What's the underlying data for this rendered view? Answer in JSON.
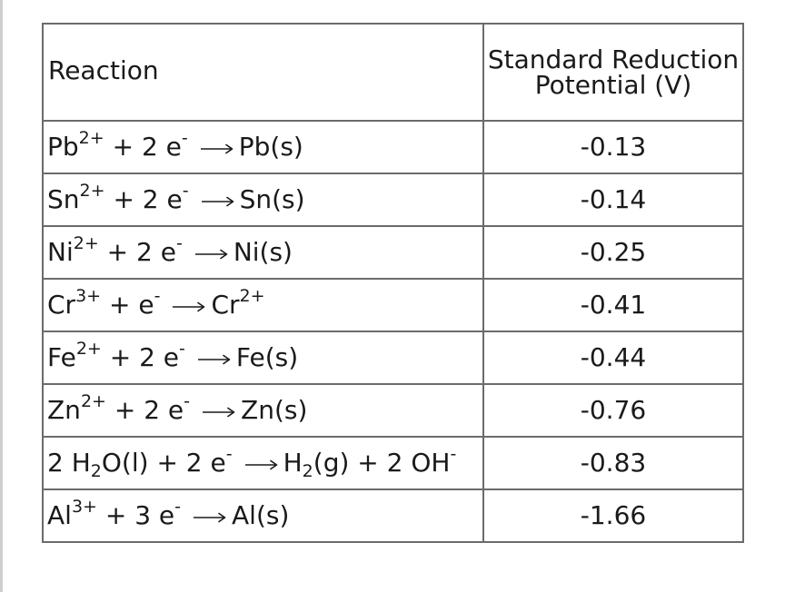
{
  "table": {
    "header": {
      "reaction": "Reaction",
      "potential_line1": "Standard Reduction",
      "potential_line2": "Potential (V)"
    },
    "arrow_icon": "right-long-arrow-icon",
    "rows": [
      {
        "lhs": [
          [
            "t",
            "Pb"
          ],
          [
            "sup",
            "2+"
          ],
          [
            "t",
            " + 2 e"
          ],
          [
            "sup",
            "-"
          ]
        ],
        "rhs": [
          [
            "t",
            "Pb(s)"
          ]
        ],
        "potential": "-0.13"
      },
      {
        "lhs": [
          [
            "t",
            "Sn"
          ],
          [
            "sup",
            "2+"
          ],
          [
            "t",
            " + 2 e"
          ],
          [
            "sup",
            "-"
          ]
        ],
        "rhs": [
          [
            "t",
            "Sn(s)"
          ]
        ],
        "potential": "-0.14"
      },
      {
        "lhs": [
          [
            "t",
            "Ni"
          ],
          [
            "sup",
            "2+"
          ],
          [
            "t",
            " + 2 e"
          ],
          [
            "sup",
            "-"
          ]
        ],
        "rhs": [
          [
            "t",
            "Ni(s)"
          ]
        ],
        "potential": "-0.25"
      },
      {
        "lhs": [
          [
            "t",
            "Cr"
          ],
          [
            "sup",
            "3+"
          ],
          [
            "t",
            " + e"
          ],
          [
            "sup",
            "-"
          ]
        ],
        "rhs": [
          [
            "t",
            "Cr"
          ],
          [
            "sup",
            "2+"
          ]
        ],
        "potential": "-0.41"
      },
      {
        "lhs": [
          [
            "t",
            "Fe"
          ],
          [
            "sup",
            "2+"
          ],
          [
            "t",
            " + 2 e"
          ],
          [
            "sup",
            "-"
          ]
        ],
        "rhs": [
          [
            "t",
            "Fe(s)"
          ]
        ],
        "potential": "-0.44"
      },
      {
        "lhs": [
          [
            "t",
            "Zn"
          ],
          [
            "sup",
            "2+"
          ],
          [
            "t",
            " + 2 e"
          ],
          [
            "sup",
            "-"
          ]
        ],
        "rhs": [
          [
            "t",
            "Zn(s)"
          ]
        ],
        "potential": "-0.76"
      },
      {
        "lhs": [
          [
            "t",
            "2 H"
          ],
          [
            "sub",
            "2"
          ],
          [
            "t",
            "O(l) + 2 e"
          ],
          [
            "sup",
            "-"
          ]
        ],
        "rhs": [
          [
            "t",
            "H"
          ],
          [
            "sub",
            "2"
          ],
          [
            "t",
            "(g) + 2 OH"
          ],
          [
            "sup",
            "-"
          ]
        ],
        "potential": "-0.83"
      },
      {
        "lhs": [
          [
            "t",
            "Al"
          ],
          [
            "sup",
            "3+"
          ],
          [
            "t",
            " + 3 e"
          ],
          [
            "sup",
            "-"
          ]
        ],
        "rhs": [
          [
            "t",
            "Al(s)"
          ]
        ],
        "potential": "-1.66"
      }
    ]
  }
}
